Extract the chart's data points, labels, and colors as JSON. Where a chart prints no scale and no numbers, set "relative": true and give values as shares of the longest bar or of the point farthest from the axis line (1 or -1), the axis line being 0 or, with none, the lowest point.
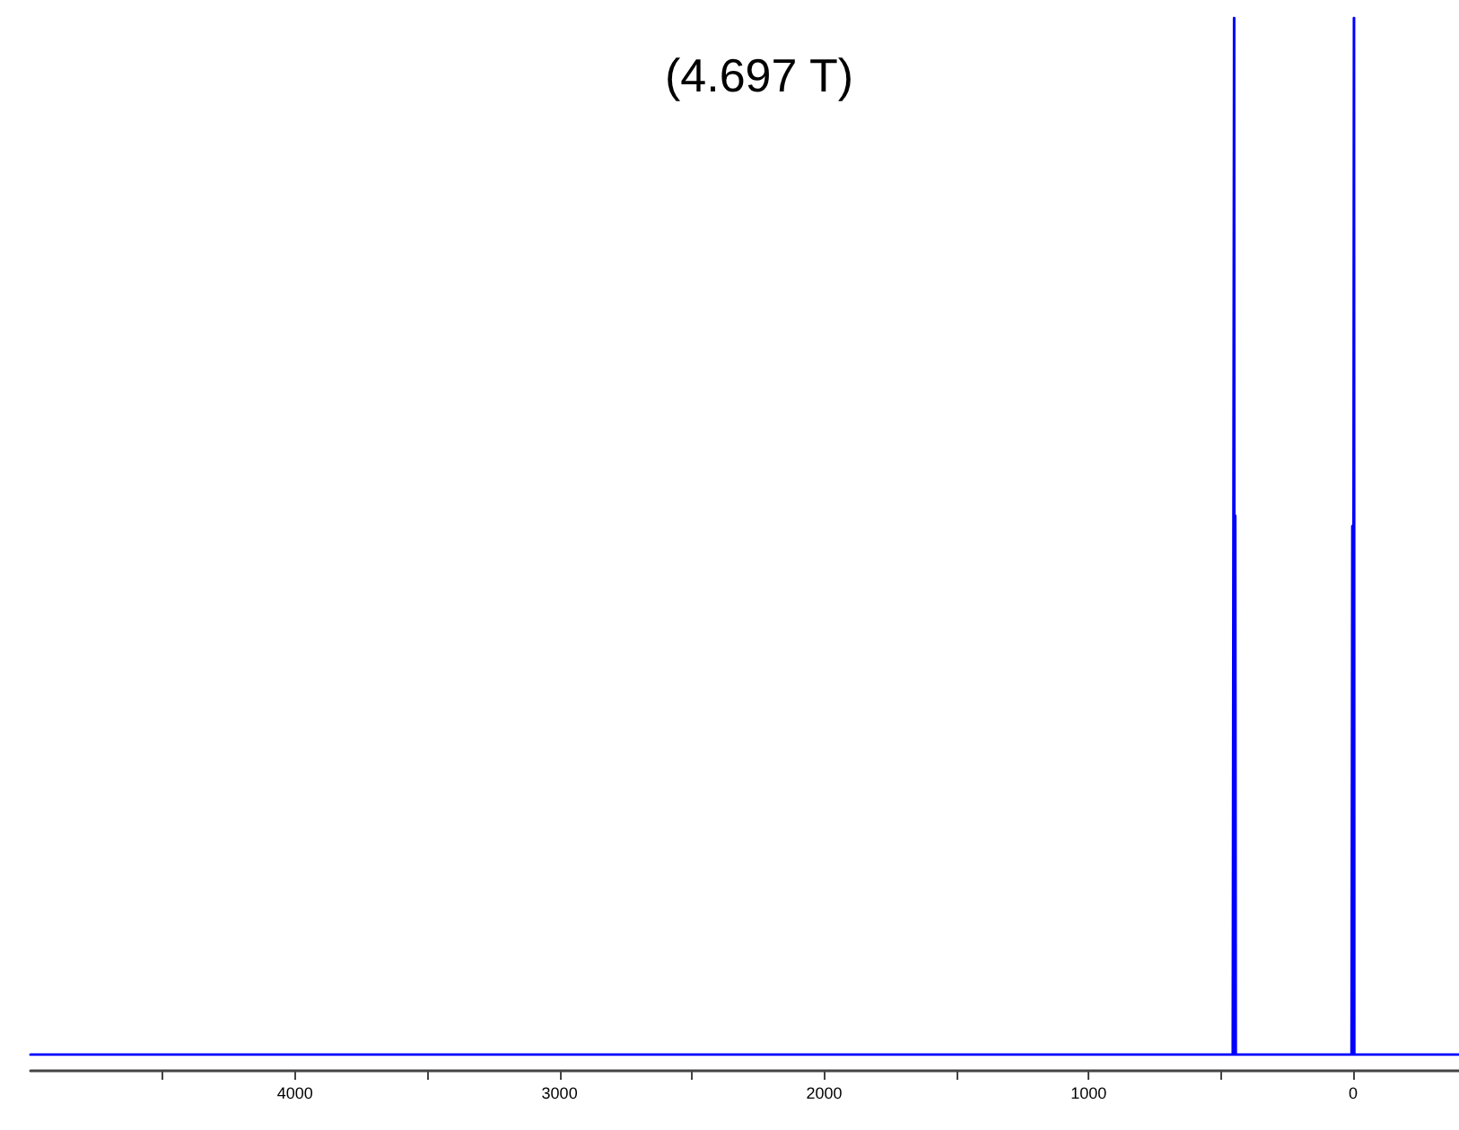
{
  "chart_data": {
    "type": "line",
    "title": "(4.697 T)",
    "relative": true,
    "marker": "none",
    "x": [
      5000,
      455,
      451,
      450,
      449,
      447,
      446,
      445,
      444,
      442,
      6,
      4,
      3,
      2,
      0,
      -2,
      -3,
      -4,
      -6,
      -400
    ],
    "series": [
      {
        "color": "#0000ff",
        "values": [
          0,
          0,
          0,
          1,
          0,
          0,
          0.52,
          0.52,
          0,
          0,
          0,
          0,
          0.51,
          0.51,
          0,
          0,
          1,
          0,
          0,
          0
        ]
      }
    ],
    "xlim": [
      5000,
      -400
    ],
    "xticks": [
      {
        "value": 4500,
        "label": null
      },
      4000,
      {
        "value": 3500,
        "label": null
      },
      3000,
      {
        "value": 2500,
        "label": null
      },
      2000,
      {
        "value": 1500,
        "label": null
      },
      1000,
      {
        "value": 500,
        "label": null
      },
      0
    ]
  }
}
